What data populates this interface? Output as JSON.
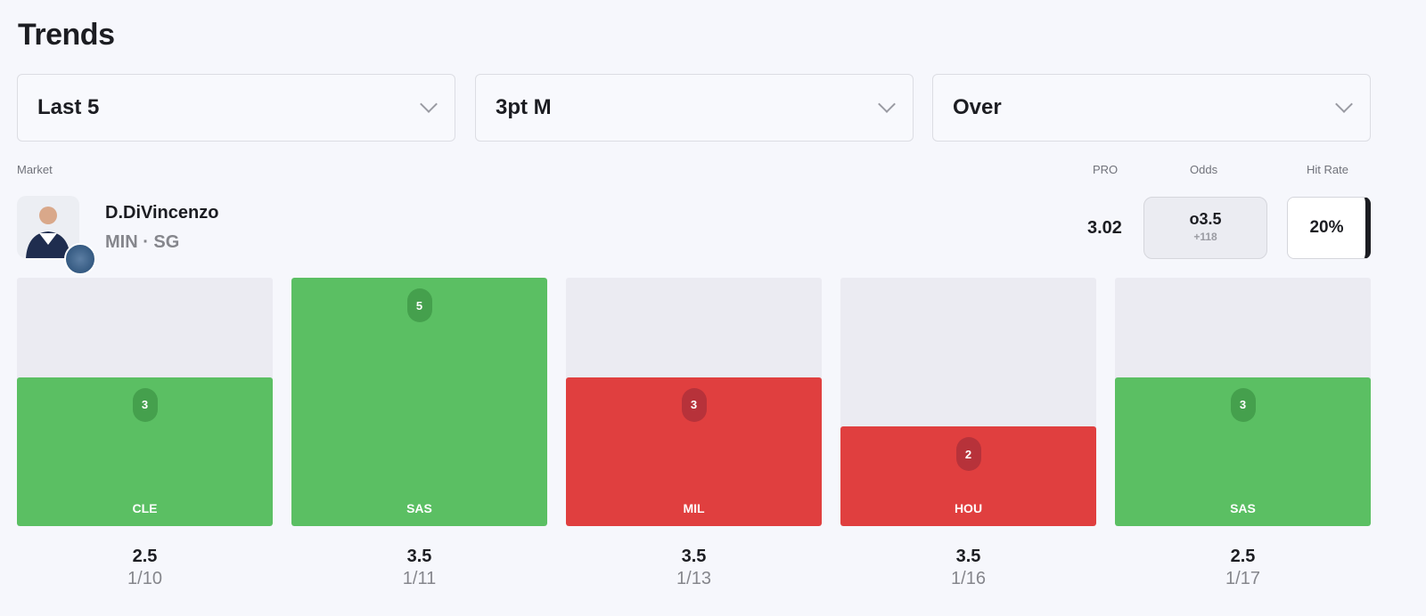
{
  "title": "Trends",
  "filters": [
    {
      "value": "Last 5"
    },
    {
      "value": "3pt M"
    },
    {
      "value": "Over"
    }
  ],
  "headers": {
    "market": "Market",
    "pro": "PRO",
    "odds": "Odds",
    "hit_rate": "Hit Rate"
  },
  "player": {
    "name": "D.DiVincenzo",
    "meta": "MIN · SG"
  },
  "pro": "3.02",
  "odds": {
    "line": "o3.5",
    "price": "+118"
  },
  "hit_rate": "20%",
  "colors": {
    "hit": "#5bbf63",
    "miss": "#e03f3f",
    "hit_bubble": "#45a04d",
    "miss_bubble": "#b7323a",
    "track": "#ebebf2"
  },
  "chart_data": {
    "type": "bar",
    "max": 5,
    "games": [
      {
        "opp": "CLE",
        "value": 3,
        "line": "2.5",
        "date": "1/10",
        "hit": true
      },
      {
        "opp": "SAS",
        "value": 5,
        "line": "3.5",
        "date": "1/11",
        "hit": true
      },
      {
        "opp": "MIL",
        "value": 3,
        "line": "3.5",
        "date": "1/13",
        "hit": false
      },
      {
        "opp": "HOU",
        "value": 2,
        "line": "3.5",
        "date": "1/16",
        "hit": false
      },
      {
        "opp": "SAS",
        "value": 3,
        "line": "2.5",
        "date": "1/17",
        "hit": true
      }
    ]
  }
}
